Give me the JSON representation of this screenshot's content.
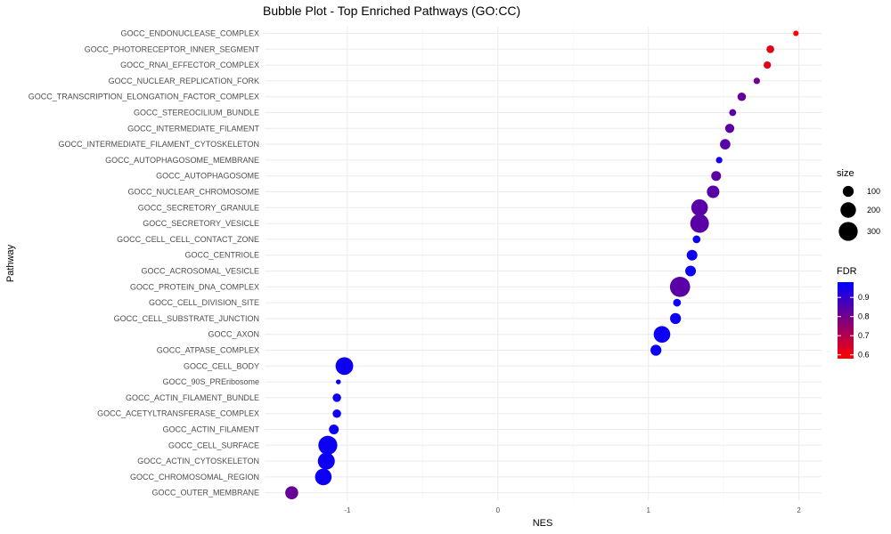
{
  "chart_data": {
    "type": "scatter",
    "title": "Bubble Plot - Top Enriched Pathways (GO:CC)",
    "xlabel": "NES",
    "ylabel": "Pathway",
    "xlim": [
      -1.55,
      2.15
    ],
    "x_ticks": [
      -1,
      0,
      1,
      2
    ],
    "x_tick_labels": [
      "-1",
      "0",
      "1",
      "2"
    ],
    "grid": true,
    "legend_position": "right",
    "size_legend": {
      "title": "size",
      "values": [
        100,
        200,
        300
      ],
      "labels": [
        "100",
        "200",
        "300"
      ]
    },
    "color_legend": {
      "title": "FDR",
      "range": [
        0.58,
        0.98
      ],
      "ticks": [
        0.6,
        0.7,
        0.8,
        0.9
      ],
      "tick_labels": [
        "0.6",
        "0.7",
        "0.8",
        "0.9"
      ],
      "low_color": "#ff0000",
      "high_color": "#0000ff"
    },
    "categories": [
      "GOCC_ENDONUCLEASE_COMPLEX",
      "GOCC_PHOTORECEPTOR_INNER_SEGMENT",
      "GOCC_RNAI_EFFECTOR_COMPLEX",
      "GOCC_NUCLEAR_REPLICATION_FORK",
      "GOCC_TRANSCRIPTION_ELONGATION_FACTOR_COMPLEX",
      "GOCC_STEREOCILIUM_BUNDLE",
      "GOCC_INTERMEDIATE_FILAMENT",
      "GOCC_INTERMEDIATE_FILAMENT_CYTOSKELETON",
      "GOCC_AUTOPHAGOSOME_MEMBRANE",
      "GOCC_AUTOPHAGOSOME",
      "GOCC_NUCLEAR_CHROMOSOME",
      "GOCC_SECRETORY_GRANULE",
      "GOCC_SECRETORY_VESICLE",
      "GOCC_CELL_CELL_CONTACT_ZONE",
      "GOCC_CENTRIOLE",
      "GOCC_ACROSOMAL_VESICLE",
      "GOCC_PROTEIN_DNA_COMPLEX",
      "GOCC_CELL_DIVISION_SITE",
      "GOCC_CELL_SUBSTRATE_JUNCTION",
      "GOCC_AXON",
      "GOCC_ATPASE_COMPLEX",
      "GOCC_CELL_BODY",
      "GOCC_90S_PREribosome",
      "GOCC_ACTIN_FILAMENT_BUNDLE",
      "GOCC_ACETYLTRANSFERASE_COMPLEX",
      "GOCC_ACTIN_FILAMENT",
      "GOCC_CELL_SURFACE",
      "GOCC_ACTIN_CYTOSKELETON",
      "GOCC_CHROMOSOMAL_REGION",
      "GOCC_OUTER_MEMBRANE"
    ],
    "points": [
      {
        "pathway": "GOCC_ENDONUCLEASE_COMPLEX",
        "nes": 1.98,
        "size": 25,
        "fdr": 0.58
      },
      {
        "pathway": "GOCC_PHOTORECEPTOR_INNER_SEGMENT",
        "nes": 1.81,
        "size": 50,
        "fdr": 0.62
      },
      {
        "pathway": "GOCC_RNAI_EFFECTOR_COMPLEX",
        "nes": 1.79,
        "size": 45,
        "fdr": 0.62
      },
      {
        "pathway": "GOCC_NUCLEAR_REPLICATION_FORK",
        "nes": 1.72,
        "size": 35,
        "fdr": 0.8
      },
      {
        "pathway": "GOCC_TRANSCRIPTION_ELONGATION_FACTOR_COMPLEX",
        "nes": 1.62,
        "size": 60,
        "fdr": 0.82
      },
      {
        "pathway": "GOCC_STEREOCILIUM_BUNDLE",
        "nes": 1.56,
        "size": 40,
        "fdr": 0.84
      },
      {
        "pathway": "GOCC_INTERMEDIATE_FILAMENT",
        "nes": 1.54,
        "size": 70,
        "fdr": 0.84
      },
      {
        "pathway": "GOCC_INTERMEDIATE_FILAMENT_CYTOSKELETON",
        "nes": 1.51,
        "size": 90,
        "fdr": 0.84
      },
      {
        "pathway": "GOCC_AUTOPHAGOSOME_MEMBRANE",
        "nes": 1.47,
        "size": 35,
        "fdr": 0.95
      },
      {
        "pathway": "GOCC_AUTOPHAGOSOME",
        "nes": 1.45,
        "size": 80,
        "fdr": 0.84
      },
      {
        "pathway": "GOCC_NUCLEAR_CHROMOSOME",
        "nes": 1.43,
        "size": 130,
        "fdr": 0.84
      },
      {
        "pathway": "GOCC_SECRETORY_GRANULE",
        "nes": 1.34,
        "size": 230,
        "fdr": 0.84
      },
      {
        "pathway": "GOCC_SECRETORY_VESICLE",
        "nes": 1.34,
        "size": 290,
        "fdr": 0.84
      },
      {
        "pathway": "GOCC_CELL_CELL_CONTACT_ZONE",
        "nes": 1.32,
        "size": 50,
        "fdr": 0.96
      },
      {
        "pathway": "GOCC_CENTRIOLE",
        "nes": 1.29,
        "size": 95,
        "fdr": 0.96
      },
      {
        "pathway": "GOCC_ACROSOMAL_VESICLE",
        "nes": 1.28,
        "size": 95,
        "fdr": 0.96
      },
      {
        "pathway": "GOCC_PROTEIN_DNA_COMPLEX",
        "nes": 1.21,
        "size": 340,
        "fdr": 0.84
      },
      {
        "pathway": "GOCC_CELL_DIVISION_SITE",
        "nes": 1.19,
        "size": 50,
        "fdr": 0.96
      },
      {
        "pathway": "GOCC_CELL_SUBSTRATE_JUNCTION",
        "nes": 1.18,
        "size": 100,
        "fdr": 0.96
      },
      {
        "pathway": "GOCC_AXON",
        "nes": 1.09,
        "size": 230,
        "fdr": 0.96
      },
      {
        "pathway": "GOCC_ATPASE_COMPLEX",
        "nes": 1.05,
        "size": 100,
        "fdr": 0.96
      },
      {
        "pathway": "GOCC_CELL_BODY",
        "nes": -1.02,
        "size": 260,
        "fdr": 0.96
      },
      {
        "pathway": "GOCC_90S_PREribosome",
        "nes": -1.06,
        "size": 20,
        "fdr": 0.96
      },
      {
        "pathway": "GOCC_ACTIN_FILAMENT_BUNDLE",
        "nes": -1.07,
        "size": 60,
        "fdr": 0.96
      },
      {
        "pathway": "GOCC_ACETYLTRANSFERASE_COMPLEX",
        "nes": -1.07,
        "size": 60,
        "fdr": 0.96
      },
      {
        "pathway": "GOCC_ACTIN_FILAMENT",
        "nes": -1.09,
        "size": 80,
        "fdr": 0.96
      },
      {
        "pathway": "GOCC_CELL_SURFACE",
        "nes": -1.13,
        "size": 300,
        "fdr": 0.96
      },
      {
        "pathway": "GOCC_ACTIN_CYTOSKELETON",
        "nes": -1.14,
        "size": 240,
        "fdr": 0.96
      },
      {
        "pathway": "GOCC_CHROMOSOMAL_REGION",
        "nes": -1.16,
        "size": 230,
        "fdr": 0.96
      },
      {
        "pathway": "GOCC_OUTER_MEMBRANE",
        "nes": -1.37,
        "size": 140,
        "fdr": 0.82
      }
    ]
  }
}
